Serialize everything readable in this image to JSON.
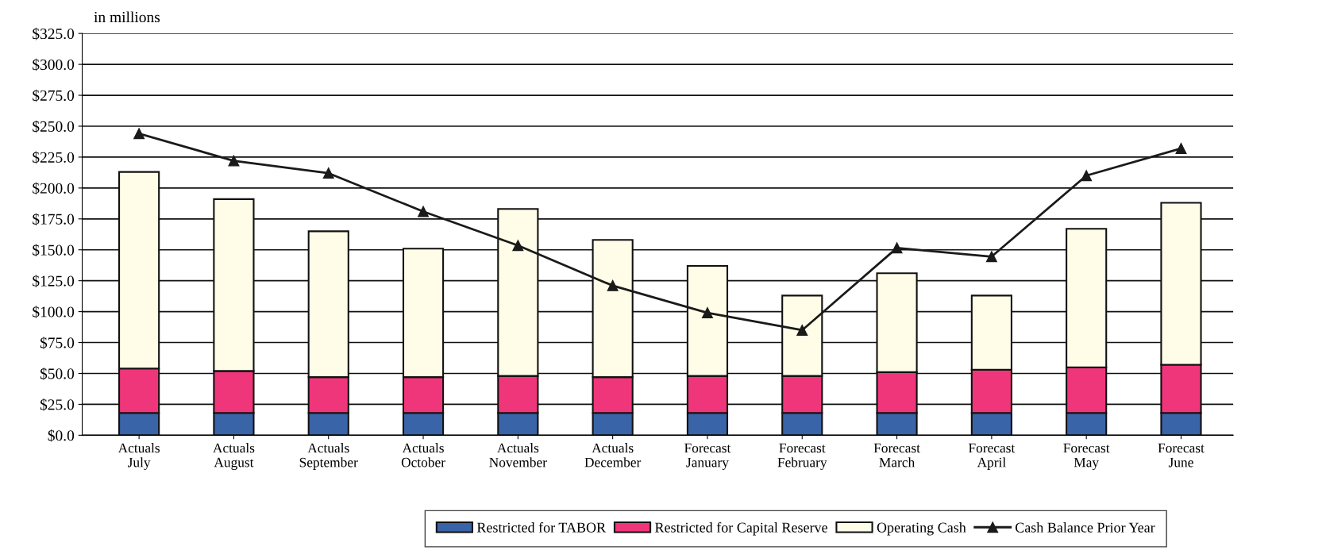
{
  "chart_data": {
    "type": "bar",
    "stacked": true,
    "ylabel": "in millions",
    "categories": [
      "Actuals\nJuly",
      "Actuals\nAugust",
      "Actuals\nSeptember",
      "Actuals\nOctober",
      "Actuals\nNovember",
      "Actuals\nDecember",
      "Forecast\nJanuary",
      "Forecast\nFebruary",
      "Forecast\nMarch",
      "Forecast\nApril",
      "Forecast\nMay",
      "Forecast\nJune"
    ],
    "series": [
      {
        "name": "Restricted for TABOR",
        "color": "#3a64a8",
        "values": [
          18,
          18,
          18,
          18,
          18,
          18,
          18,
          18,
          18,
          18,
          18,
          18
        ]
      },
      {
        "name": "Restricted for Capital Reserve",
        "color": "#f0367a",
        "values": [
          36,
          34,
          29,
          29,
          30,
          29,
          30,
          30,
          33,
          35,
          37,
          39
        ]
      },
      {
        "name": "Operating Cash",
        "color": "#fffde8",
        "values": [
          159,
          139,
          118,
          104,
          135,
          111,
          89,
          65,
          80,
          60,
          112,
          131
        ]
      },
      {
        "name": "Cash Balance Prior Year",
        "type": "line",
        "color": "#1a1a1a",
        "marker": "triangle",
        "values": [
          244,
          222,
          212,
          181,
          153.5,
          121,
          99,
          85,
          151.5,
          144.5,
          210,
          232
        ]
      }
    ],
    "ylim": [
      0,
      325
    ],
    "yticks": [
      {
        "value": 0,
        "label": "$0.0"
      },
      {
        "value": 25,
        "label": "$25.0"
      },
      {
        "value": 50,
        "label": "$50.0"
      },
      {
        "value": 75,
        "label": "$75.0"
      },
      {
        "value": 100,
        "label": "$100.0"
      },
      {
        "value": 125,
        "label": "$125.0"
      },
      {
        "value": 150,
        "label": "$150.0"
      },
      {
        "value": 175,
        "label": "$175.0"
      },
      {
        "value": 200,
        "label": "$200.0"
      },
      {
        "value": 225,
        "label": "$225.0"
      },
      {
        "value": 250,
        "label": "$250.0"
      },
      {
        "value": 275,
        "label": "$275.0"
      },
      {
        "value": 300,
        "label": "$300.0"
      },
      {
        "value": 325,
        "label": "$325.0"
      }
    ],
    "grid": "y",
    "legend": "bottom"
  }
}
